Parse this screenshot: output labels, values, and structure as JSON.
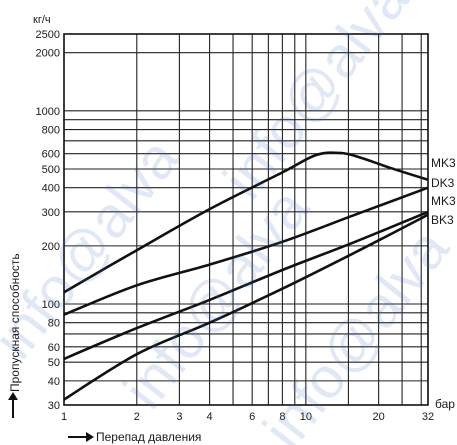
{
  "chart_data": {
    "type": "line",
    "scale": "log-log",
    "yunit": "кг/ч",
    "xunit": "бар",
    "ylabel": "Пропускная способность",
    "xlabel": "Перепад давления",
    "xlim": [
      1,
      32
    ],
    "ylim": [
      30,
      2500
    ],
    "x_ticks": [
      {
        "v": 1,
        "label": "1"
      },
      {
        "v": 2,
        "label": "2"
      },
      {
        "v": 3,
        "label": "3"
      },
      {
        "v": 4,
        "label": "4"
      },
      {
        "v": 6,
        "label": "6"
      },
      {
        "v": 8,
        "label": "8"
      },
      {
        "v": 10,
        "label": "10"
      },
      {
        "v": 20,
        "label": "20"
      },
      {
        "v": 32,
        "label": "32"
      }
    ],
    "y_ticks": [
      {
        "v": 30,
        "label": "30"
      },
      {
        "v": 40,
        "label": "40"
      },
      {
        "v": 50,
        "label": "50"
      },
      {
        "v": 60,
        "label": "60"
      },
      {
        "v": 80,
        "label": "80"
      },
      {
        "v": 100,
        "label": "100"
      },
      {
        "v": 200,
        "label": "200"
      },
      {
        "v": 300,
        "label": "300"
      },
      {
        "v": 400,
        "label": "400"
      },
      {
        "v": 500,
        "label": "500"
      },
      {
        "v": 600,
        "label": "600"
      },
      {
        "v": 800,
        "label": "800"
      },
      {
        "v": 1000,
        "label": "1000"
      },
      {
        "v": 2000,
        "label": "2000"
      },
      {
        "v": 2500,
        "label": "2500"
      }
    ],
    "x_gridlines": [
      1,
      2,
      3,
      4,
      5,
      6,
      7,
      8,
      9,
      10,
      15,
      20,
      25,
      30,
      32
    ],
    "y_gridlines": [
      30,
      40,
      50,
      60,
      70,
      80,
      90,
      100,
      200,
      300,
      400,
      500,
      600,
      700,
      800,
      900,
      1000,
      2000,
      2500
    ],
    "series": [
      {
        "name": "MK3",
        "x": [
          1,
          2,
          4,
          8,
          11,
          14,
          17,
          22,
          32
        ],
        "y": [
          115,
          190,
          310,
          480,
          590,
          605,
          570,
          510,
          440
        ]
      },
      {
        "name": "DK3",
        "x": [
          1,
          2,
          4,
          8,
          16,
          32
        ],
        "y": [
          88,
          125,
          160,
          210,
          290,
          400
        ]
      },
      {
        "name": "MK3",
        "x": [
          1,
          2,
          4,
          8,
          16,
          32
        ],
        "y": [
          52,
          75,
          105,
          150,
          210,
          300
        ]
      },
      {
        "name": "BK3",
        "x": [
          1,
          2,
          4,
          8,
          16,
          32
        ],
        "y": [
          32,
          55,
          80,
          120,
          185,
          290
        ]
      }
    ]
  },
  "watermark": "info@alva"
}
